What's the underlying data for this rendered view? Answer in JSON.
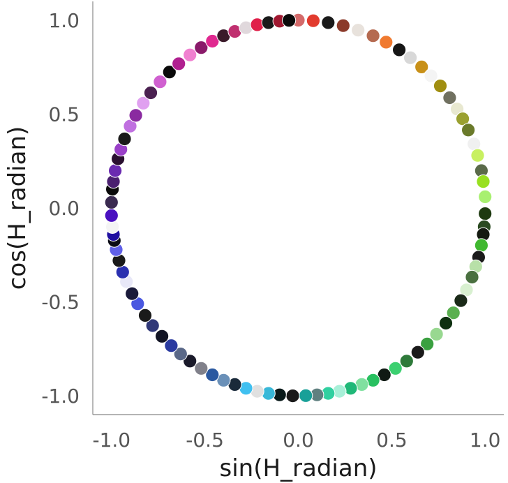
{
  "chart_data": {
    "type": "scatter",
    "title": "",
    "xlabel": "sin(H_radian)",
    "ylabel": "cos(H_radian)",
    "xlim": [
      -1.1,
      1.1
    ],
    "ylim": [
      -1.1,
      1.1
    ],
    "xticks": [
      "-1.0",
      "-0.5",
      "0.0",
      "0.5",
      "1.0"
    ],
    "yticks": [
      "1.0",
      "0.5",
      "0.0",
      "-0.5",
      "-1.0"
    ],
    "grid": false,
    "legend": "none",
    "point_radius_data_units": 0.036,
    "points": [
      {
        "x": 0.0,
        "y": 1.0,
        "color": "#d46a6a"
      },
      {
        "x": 0.08,
        "y": 0.997,
        "color": "#e23b2e"
      },
      {
        "x": 0.16,
        "y": 0.987,
        "color": "#1a1a1a"
      },
      {
        "x": 0.24,
        "y": 0.971,
        "color": "#8b3a2a"
      },
      {
        "x": 0.32,
        "y": 0.947,
        "color": "#e8e2dc"
      },
      {
        "x": 0.4,
        "y": 0.917,
        "color": "#b56a50"
      },
      {
        "x": 0.47,
        "y": 0.883,
        "color": "#f07a30"
      },
      {
        "x": 0.54,
        "y": 0.842,
        "color": "#161616"
      },
      {
        "x": 0.6,
        "y": 0.8,
        "color": "#d8d8d8"
      },
      {
        "x": 0.66,
        "y": 0.751,
        "color": "#c89018"
      },
      {
        "x": 0.71,
        "y": 0.704,
        "color": "#f4f4f4"
      },
      {
        "x": 0.76,
        "y": 0.65,
        "color": "#a08e10"
      },
      {
        "x": 0.81,
        "y": 0.587,
        "color": "#707060"
      },
      {
        "x": 0.85,
        "y": 0.527,
        "color": "#e8e8d0"
      },
      {
        "x": 0.88,
        "y": 0.475,
        "color": "#9aa030"
      },
      {
        "x": 0.91,
        "y": 0.415,
        "color": "#6a7a2a"
      },
      {
        "x": 0.94,
        "y": 0.341,
        "color": "#f0f0f0"
      },
      {
        "x": 0.96,
        "y": 0.28,
        "color": "#c8f060"
      },
      {
        "x": 0.98,
        "y": 0.199,
        "color": "#5a6a4a"
      },
      {
        "x": 0.99,
        "y": 0.141,
        "color": "#98e020"
      },
      {
        "x": 1.0,
        "y": 0.06,
        "color": "#a8f070"
      },
      {
        "x": 1.0,
        "y": -0.03,
        "color": "#1e3a10"
      },
      {
        "x": 0.995,
        "y": -0.1,
        "color": "#2a4a20"
      },
      {
        "x": 0.99,
        "y": -0.141,
        "color": "#141a10"
      },
      {
        "x": 0.98,
        "y": -0.199,
        "color": "#40b830"
      },
      {
        "x": 0.965,
        "y": -0.262,
        "color": "#1a1a1a"
      },
      {
        "x": 0.95,
        "y": -0.312,
        "color": "#b8e0a8"
      },
      {
        "x": 0.93,
        "y": -0.368,
        "color": "#4a7040"
      },
      {
        "x": 0.9,
        "y": -0.436,
        "color": "#d8f0d0"
      },
      {
        "x": 0.87,
        "y": -0.493,
        "color": "#1a2a18"
      },
      {
        "x": 0.83,
        "y": -0.558,
        "color": "#5ab050"
      },
      {
        "x": 0.79,
        "y": -0.613,
        "color": "#0e3010"
      },
      {
        "x": 0.74,
        "y": -0.672,
        "color": "#98d890"
      },
      {
        "x": 0.69,
        "y": -0.724,
        "color": "#3aa040"
      },
      {
        "x": 0.64,
        "y": -0.768,
        "color": "#1a1a1a"
      },
      {
        "x": 0.58,
        "y": -0.815,
        "color": "#2e7a3a"
      },
      {
        "x": 0.52,
        "y": -0.854,
        "color": "#3cd070"
      },
      {
        "x": 0.46,
        "y": -0.888,
        "color": "#101a14"
      },
      {
        "x": 0.4,
        "y": -0.917,
        "color": "#28c060"
      },
      {
        "x": 0.34,
        "y": -0.94,
        "color": "#80e0a0"
      },
      {
        "x": 0.28,
        "y": -0.96,
        "color": "#20b878"
      },
      {
        "x": 0.22,
        "y": -0.976,
        "color": "#a8f0d8"
      },
      {
        "x": 0.16,
        "y": -0.987,
        "color": "#30d0a0"
      },
      {
        "x": 0.1,
        "y": -0.995,
        "color": "#608080"
      },
      {
        "x": 0.04,
        "y": -0.999,
        "color": "#18a098"
      },
      {
        "x": -0.03,
        "y": -1.0,
        "color": "#1a1a1a"
      },
      {
        "x": -0.1,
        "y": -0.995,
        "color": "#0a1a1a"
      },
      {
        "x": -0.16,
        "y": -0.987,
        "color": "#38b8d8"
      },
      {
        "x": -0.22,
        "y": -0.976,
        "color": "#e0e0e0"
      },
      {
        "x": -0.28,
        "y": -0.96,
        "color": "#40c0f0"
      },
      {
        "x": -0.34,
        "y": -0.94,
        "color": "#1a2a3a"
      },
      {
        "x": -0.4,
        "y": -0.917,
        "color": "#6a90b8"
      },
      {
        "x": -0.46,
        "y": -0.888,
        "color": "#2a58a0"
      },
      {
        "x": -0.52,
        "y": -0.854,
        "color": "#80808a"
      },
      {
        "x": -0.58,
        "y": -0.815,
        "color": "#1a1a2a"
      },
      {
        "x": -0.63,
        "y": -0.777,
        "color": "#5a6888"
      },
      {
        "x": -0.68,
        "y": -0.733,
        "color": "#2a3aa0"
      },
      {
        "x": -0.73,
        "y": -0.683,
        "color": "#121424"
      },
      {
        "x": -0.78,
        "y": -0.626,
        "color": "#303878"
      },
      {
        "x": -0.82,
        "y": -0.572,
        "color": "#1a1a1a"
      },
      {
        "x": -0.86,
        "y": -0.51,
        "color": "#4a58e0"
      },
      {
        "x": -0.89,
        "y": -0.456,
        "color": "#1a1a3a"
      },
      {
        "x": -0.92,
        "y": -0.392,
        "color": "#e8e8f8"
      },
      {
        "x": -0.94,
        "y": -0.341,
        "color": "#2a30b0"
      },
      {
        "x": -0.96,
        "y": -0.28,
        "color": "#1a1a1a"
      },
      {
        "x": -0.975,
        "y": -0.222,
        "color": "#6060e8"
      },
      {
        "x": -0.985,
        "y": -0.173,
        "color": "#0a0a14"
      },
      {
        "x": -0.99,
        "y": -0.141,
        "color": "#2010a0"
      },
      {
        "x": -0.995,
        "y": -0.1,
        "color": "#f4f4f4"
      },
      {
        "x": -1.0,
        "y": -0.04,
        "color": "#4a10c0"
      },
      {
        "x": -1.0,
        "y": 0.03,
        "color": "#3a2a50"
      },
      {
        "x": -0.995,
        "y": 0.1,
        "color": "#0a0a0a"
      },
      {
        "x": -0.99,
        "y": 0.141,
        "color": "#4a2070"
      },
      {
        "x": -0.98,
        "y": 0.199,
        "color": "#6a2ab0"
      },
      {
        "x": -0.965,
        "y": 0.262,
        "color": "#2a1030"
      },
      {
        "x": -0.95,
        "y": 0.312,
        "color": "#9a40c8"
      },
      {
        "x": -0.93,
        "y": 0.368,
        "color": "#1a1a1a"
      },
      {
        "x": -0.9,
        "y": 0.436,
        "color": "#c070e0"
      },
      {
        "x": -0.87,
        "y": 0.493,
        "color": "#8a2aa0"
      },
      {
        "x": -0.83,
        "y": 0.558,
        "color": "#e0a0f0"
      },
      {
        "x": -0.79,
        "y": 0.613,
        "color": "#4a2050"
      },
      {
        "x": -0.74,
        "y": 0.672,
        "color": "#d060d0"
      },
      {
        "x": -0.69,
        "y": 0.724,
        "color": "#0a0a0a"
      },
      {
        "x": -0.64,
        "y": 0.768,
        "color": "#b02090"
      },
      {
        "x": -0.58,
        "y": 0.815,
        "color": "#f080d0"
      },
      {
        "x": -0.52,
        "y": 0.854,
        "color": "#8a1a6a"
      },
      {
        "x": -0.46,
        "y": 0.888,
        "color": "#e02890"
      },
      {
        "x": -0.4,
        "y": 0.917,
        "color": "#3a1a2a"
      },
      {
        "x": -0.34,
        "y": 0.94,
        "color": "#c03070"
      },
      {
        "x": -0.28,
        "y": 0.96,
        "color": "#e0d8dc"
      },
      {
        "x": -0.22,
        "y": 0.976,
        "color": "#e0204a"
      },
      {
        "x": -0.16,
        "y": 0.987,
        "color": "#1a1a1a"
      },
      {
        "x": -0.1,
        "y": 0.995,
        "color": "#a01830"
      },
      {
        "x": -0.05,
        "y": 0.999,
        "color": "#0a0a0a"
      }
    ]
  }
}
